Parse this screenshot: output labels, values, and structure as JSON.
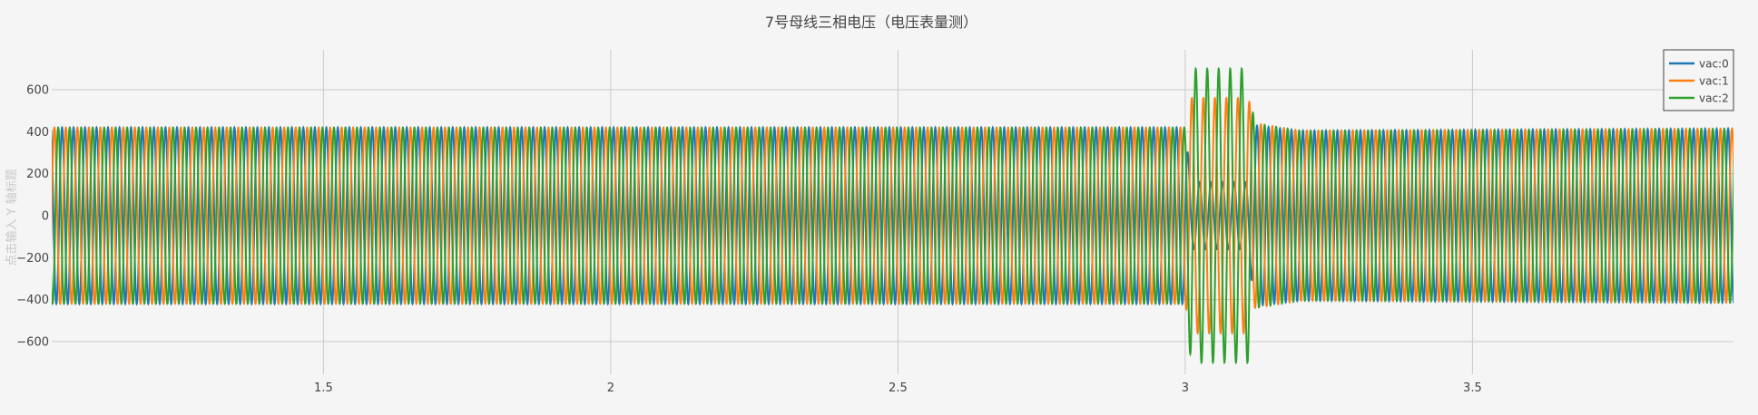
{
  "chart_data": {
    "type": "line",
    "title": "7号母线三相电压（电压表量测）",
    "xlabel": "",
    "ylabel": "点击输入 Y 轴标题",
    "xlim": [
      1.0,
      4.0
    ],
    "ylim": [
      -750,
      750
    ],
    "x_ticks": [
      1.5,
      2,
      2.5,
      3,
      3.5
    ],
    "x_tick_labels": [
      "1.5",
      "2",
      "2.5",
      "3",
      "3.5"
    ],
    "y_ticks": [
      -600,
      -400,
      -200,
      0,
      200,
      400,
      600
    ],
    "y_tick_labels": [
      "−600",
      "−400",
      "−200",
      "0",
      "200",
      "400",
      "600"
    ],
    "grid": true,
    "legend": "top-right",
    "frequency_hz": 50,
    "series": [
      {
        "name": "vac:0",
        "color": "#1f77b4",
        "phase_deg": 0,
        "envelope": [
          {
            "x": 1.0,
            "amp": 420
          },
          {
            "x": 3.0,
            "amp": 420
          },
          {
            "x": 3.01,
            "amp": 160
          },
          {
            "x": 3.11,
            "amp": 160
          },
          {
            "x": 3.12,
            "amp": 430
          },
          {
            "x": 3.2,
            "amp": 405
          },
          {
            "x": 3.97,
            "amp": 415
          }
        ]
      },
      {
        "name": "vac:1",
        "color": "#ff7f0e",
        "phase_deg": -120,
        "envelope": [
          {
            "x": 1.0,
            "amp": 420
          },
          {
            "x": 3.0,
            "amp": 420
          },
          {
            "x": 3.01,
            "amp": 560
          },
          {
            "x": 3.11,
            "amp": 560
          },
          {
            "x": 3.12,
            "amp": 440
          },
          {
            "x": 3.2,
            "amp": 405
          },
          {
            "x": 3.97,
            "amp": 415
          }
        ]
      },
      {
        "name": "vac:2",
        "color": "#2ca02c",
        "phase_deg": 120,
        "envelope": [
          {
            "x": 1.0,
            "amp": 420
          },
          {
            "x": 3.0,
            "amp": 420
          },
          {
            "x": 3.01,
            "amp": 700
          },
          {
            "x": 3.11,
            "amp": 700
          },
          {
            "x": 3.12,
            "amp": 440
          },
          {
            "x": 3.2,
            "amp": 405
          },
          {
            "x": 3.97,
            "amp": 415
          }
        ]
      }
    ]
  }
}
